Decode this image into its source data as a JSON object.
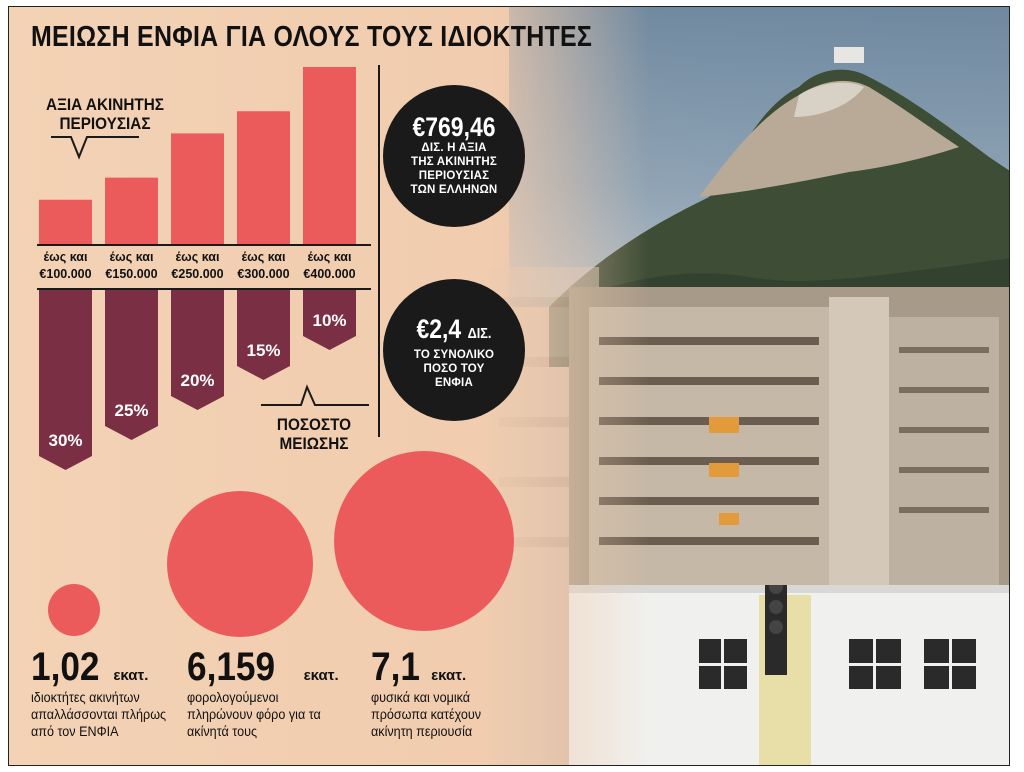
{
  "title": "ΜΕΙΩΣΗ ΕΝΦΙΑ ΓΙΑ ΟΛΟΥΣ ΤΟΥΣ ΙΔΙΟΚΤΗΤΕΣ",
  "colors": {
    "accent_red": "#ec5b5b",
    "bar_dark": "#7a2f45",
    "background": "#f3d2b5",
    "black": "#1a1a1a"
  },
  "chart_data": {
    "type": "bar",
    "categories": [
      "έως και €100.000",
      "έως και €150.000",
      "έως και €250.000",
      "έως και €300.000",
      "έως και €400.000"
    ],
    "category_lines": [
      [
        "έως και",
        "€100.000"
      ],
      [
        "έως και",
        "€150.000"
      ],
      [
        "έως και",
        "€250.000"
      ],
      [
        "έως και",
        "€300.000"
      ],
      [
        "έως και",
        "€400.000"
      ]
    ],
    "property_value_label_lines": [
      "ΑΞΙΑ ΑΚΙΝΗΤΗΣ",
      "ΠΕΡΙΟΥΣΙΑΣ"
    ],
    "property_values": [
      100000,
      150000,
      250000,
      300000,
      400000
    ],
    "reduction_label_lines": [
      "ΠΟΣΟΣΤΟ",
      "ΜΕΙΩΣΗΣ"
    ],
    "reduction_percent": [
      30,
      25,
      20,
      15,
      10
    ],
    "reduction_labels": [
      "30%",
      "25%",
      "20%",
      "15%",
      "10%"
    ]
  },
  "stats": [
    {
      "value": "€769,46",
      "desc_lines": [
        "ΔΙΣ. Η ΑΞΙΑ",
        "ΤΗΣ ΑΚΙΝΗΤΗΣ",
        "ΠΕΡΙΟΥΣΙΑΣ",
        "ΤΩΝ ΕΛΛΗΝΩΝ"
      ]
    },
    {
      "value": "€2,4",
      "value_suffix": "ΔΙΣ.",
      "desc_lines": [
        "ΤΟ ΣΥΝΟΛΙΚΟ",
        "ΠΟΣΟ ΤΟΥ",
        "ΕΝΦΙΑ"
      ]
    }
  ],
  "bubbles": [
    {
      "value": 1.02,
      "number": "1,02",
      "unit": "εκατ.",
      "desc_lines": [
        "ιδιοκτήτες ακινήτων",
        "απαλλάσσονται πλήρως",
        "από τον ΕΝΦΙΑ"
      ]
    },
    {
      "value": 6.159,
      "number": "6,159",
      "unit": "εκατ.",
      "desc_lines": [
        "φορολογούμενοι",
        "πληρώνουν φόρο για τα",
        "ακίνητά τους"
      ]
    },
    {
      "value": 7.1,
      "number": "7,1",
      "unit": "εκατ.",
      "desc_lines": [
        "φυσικά και νομικά",
        "πρόσωπα κατέχουν",
        "ακίνητη περιουσία"
      ]
    }
  ]
}
